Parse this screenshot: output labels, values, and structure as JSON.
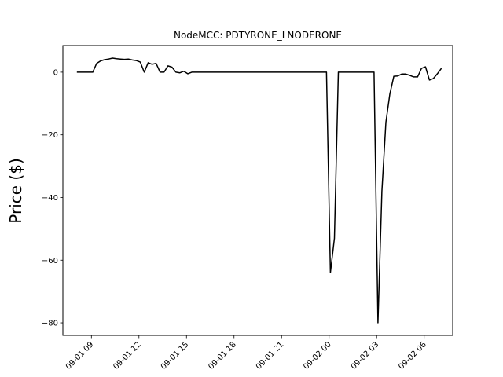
{
  "chart_data": {
    "type": "line",
    "title": "NodeMCC: PDTYRONE_LNODERONE",
    "xlabel": "",
    "ylabel": "Price ($)",
    "x_axis": {
      "kind": "datetime",
      "range": [
        "2024-09-01T07:12",
        "2024-09-02T07:48"
      ],
      "ticks": [
        "2024-09-01T09:00",
        "2024-09-01T12:00",
        "2024-09-01T15:00",
        "2024-09-01T18:00",
        "2024-09-01T21:00",
        "2024-09-02T00:00",
        "2024-09-02T03:00",
        "2024-09-02T06:00"
      ],
      "tick_labels": [
        "09-01 09",
        "09-01 12",
        "09-01 15",
        "09-01 18",
        "09-01 21",
        "09-02 00",
        "09-02 03",
        "09-02 06"
      ]
    },
    "y_axis": {
      "range": [
        -84,
        8.5
      ],
      "ticks": [
        0,
        -20,
        -40,
        -60,
        -80
      ],
      "tick_labels": [
        "0",
        "−20",
        "−40",
        "−60",
        "−80"
      ]
    },
    "grid": false,
    "legend": "none",
    "line_color": "#000000",
    "series": [
      {
        "values": [
          {
            "x": "2024-09-01T08:05",
            "y": 0
          },
          {
            "x": "2024-09-01T08:20",
            "y": 0
          },
          {
            "x": "2024-09-01T08:35",
            "y": 0
          },
          {
            "x": "2024-09-01T08:50",
            "y": 0
          },
          {
            "x": "2024-09-01T09:05",
            "y": 0
          },
          {
            "x": "2024-09-01T09:20",
            "y": 0
          },
          {
            "x": "2024-09-01T09:35",
            "y": 0
          },
          {
            "x": "2024-09-01T09:50",
            "y": 0
          },
          {
            "x": "2024-09-01T10:05",
            "y": 0
          },
          {
            "x": "2024-09-01T10:20",
            "y": 0
          },
          {
            "x": "2024-09-01T08:05",
            "y": 0
          }
        ]
      }
    ],
    "points": [
      [
        "2024-09-01T08:05",
        0.0
      ],
      [
        "2024-09-01T08:35",
        0.0
      ],
      [
        "2024-09-01T09:05",
        0.0
      ],
      [
        "2024-09-01T09:20",
        2.8
      ],
      [
        "2024-09-01T09:35",
        3.6
      ],
      [
        "2024-09-01T09:50",
        4.0
      ],
      [
        "2024-09-01T10:05",
        4.2
      ],
      [
        "2024-09-01T10:20",
        4.5
      ],
      [
        "2024-09-01T10:35",
        4.3
      ],
      [
        "2024-09-01T10:50",
        4.2
      ],
      [
        "2024-09-01T11:05",
        4.1
      ],
      [
        "2024-09-01T11:20",
        4.2
      ],
      [
        "2024-09-01T11:35",
        3.9
      ],
      [
        "2024-09-01T11:50",
        3.7
      ],
      [
        "2024-09-01T12:05",
        3.2
      ],
      [
        "2024-09-01T12:20",
        0.0
      ],
      [
        "2024-09-01T12:35",
        3.0
      ],
      [
        "2024-09-01T12:50",
        2.5
      ],
      [
        "2024-09-01T13:05",
        2.8
      ],
      [
        "2024-09-01T13:20",
        0.0
      ],
      [
        "2024-09-01T13:35",
        0.0
      ],
      [
        "2024-09-01T13:50",
        2.0
      ],
      [
        "2024-09-01T14:05",
        1.6
      ],
      [
        "2024-09-01T14:20",
        0.0
      ],
      [
        "2024-09-01T14:35",
        -0.2
      ],
      [
        "2024-09-01T14:50",
        0.3
      ],
      [
        "2024-09-01T15:05",
        -0.5
      ],
      [
        "2024-09-01T15:20",
        0.0
      ],
      [
        "2024-09-01T18:00",
        0.0
      ],
      [
        "2024-09-01T21:00",
        0.0
      ],
      [
        "2024-09-01T23:50",
        0.0
      ],
      [
        "2024-09-02T00:05",
        -64.0
      ],
      [
        "2024-09-02T00:20",
        -53.0
      ],
      [
        "2024-09-02T00:35",
        0.0
      ],
      [
        "2024-09-02T01:35",
        0.0
      ],
      [
        "2024-09-02T02:35",
        0.0
      ],
      [
        "2024-09-02T02:50",
        0.0
      ],
      [
        "2024-09-02T03:05",
        -80.0
      ],
      [
        "2024-09-02T03:20",
        -38.0
      ],
      [
        "2024-09-02T03:35",
        -16.0
      ],
      [
        "2024-09-02T03:50",
        -7.0
      ],
      [
        "2024-09-02T04:05",
        -1.3
      ],
      [
        "2024-09-02T04:20",
        -1.2
      ],
      [
        "2024-09-02T04:35",
        -0.6
      ],
      [
        "2024-09-02T04:50",
        -0.6
      ],
      [
        "2024-09-02T05:05",
        -1.0
      ],
      [
        "2024-09-02T05:20",
        -1.5
      ],
      [
        "2024-09-02T05:35",
        -1.5
      ],
      [
        "2024-09-02T05:50",
        1.2
      ],
      [
        "2024-09-02T06:05",
        1.7
      ],
      [
        "2024-09-02T06:20",
        -2.5
      ],
      [
        "2024-09-02T06:35",
        -2.0
      ],
      [
        "2024-09-02T06:50",
        -0.5
      ],
      [
        "2024-09-02T07:05",
        1.2
      ]
    ]
  }
}
